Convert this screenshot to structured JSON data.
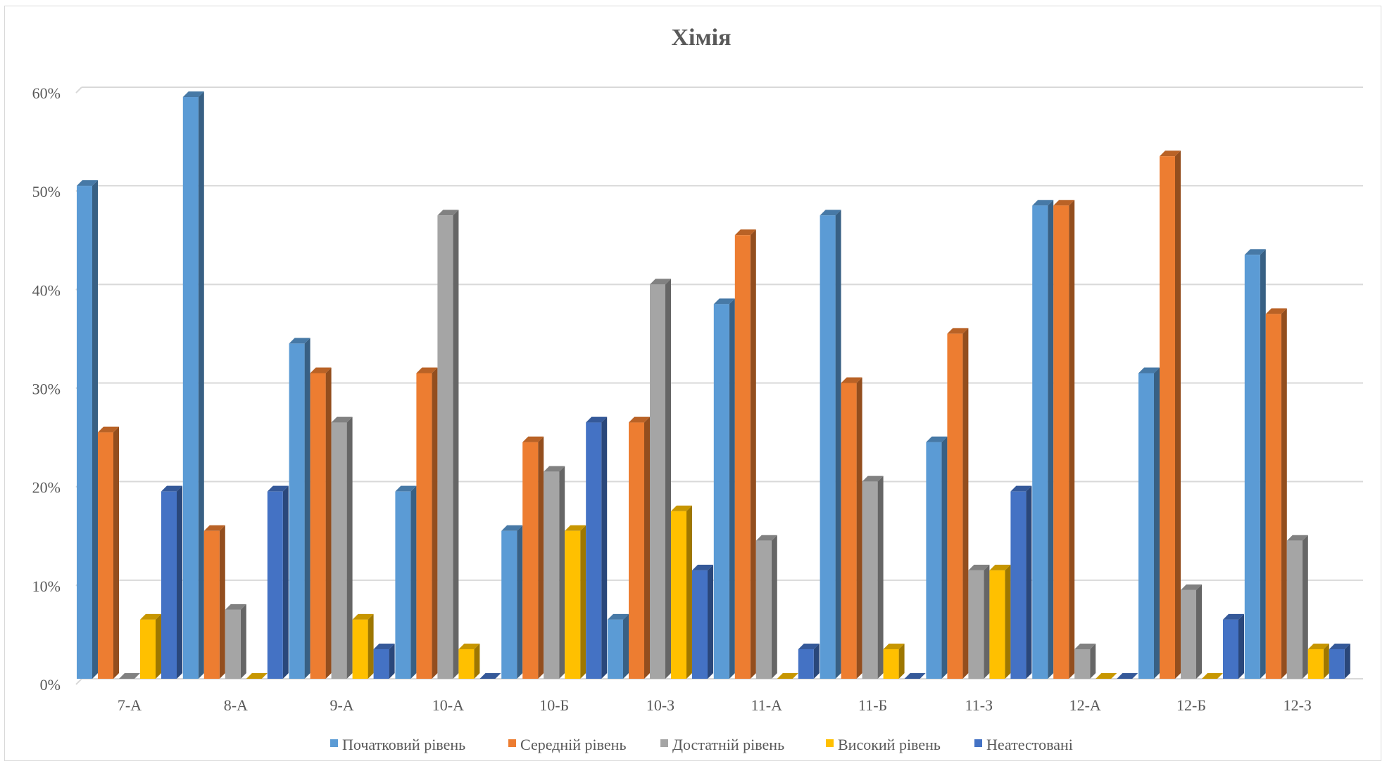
{
  "chart_data": {
    "type": "bar",
    "style": "3d-clustered-column",
    "title": "Хімія",
    "xlabel": "",
    "ylabel": "",
    "ylim": [
      0,
      60
    ],
    "yticks": [
      "0%",
      "10%",
      "20%",
      "30%",
      "40%",
      "50%",
      "60%"
    ],
    "grid": true,
    "legend_position": "bottom",
    "categories": [
      "7-А",
      "8-А",
      "9-А",
      "10-А",
      "10-Б",
      "10-З",
      "11-А",
      "11-Б",
      "11-З",
      "12-А",
      "12-Б",
      "12-З"
    ],
    "series": [
      {
        "name": "Початковий рівень",
        "color": "#5b9bd5",
        "values": [
          50,
          59,
          34,
          19,
          15,
          6,
          38,
          47,
          24,
          48,
          31,
          43
        ]
      },
      {
        "name": "Середній рівень",
        "color": "#ed7d31",
        "values": [
          25,
          15,
          31,
          31,
          24,
          26,
          45,
          30,
          35,
          48,
          53,
          37
        ]
      },
      {
        "name": "Достатній рівень",
        "color": "#a5a5a5",
        "values": [
          0,
          7,
          26,
          47,
          21,
          40,
          14,
          20,
          11,
          3,
          9,
          14
        ]
      },
      {
        "name": "Високий рівень",
        "color": "#ffc000",
        "values": [
          6,
          0,
          6,
          3,
          15,
          17,
          0,
          3,
          11,
          0,
          0,
          3
        ]
      },
      {
        "name": "Неатестовані",
        "color": "#4472c4",
        "values": [
          19,
          19,
          3,
          0,
          26,
          11,
          3,
          0,
          19,
          0,
          6,
          3
        ]
      }
    ]
  }
}
